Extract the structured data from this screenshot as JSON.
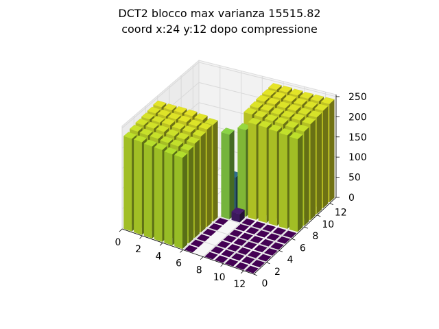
{
  "chart_data": {
    "type": "bar3d",
    "title_lines": [
      "DCT2 blocco max varianza 15515.82",
      "coord x:24 y:12 dopo compressione"
    ],
    "x_ticks": [
      "0",
      "2",
      "4",
      "6",
      "8",
      "10",
      "12"
    ],
    "y_ticks": [
      "0",
      "2",
      "4",
      "6",
      "8",
      "10",
      "12"
    ],
    "z_ticks": [
      "0",
      "50",
      "100",
      "150",
      "200",
      "250"
    ],
    "zlim": [
      0,
      255
    ],
    "grid_size": 13,
    "colormap": "viridis",
    "bars": [
      {
        "x": 0,
        "y": 0,
        "z": 230
      },
      {
        "x": 0,
        "y": 1,
        "z": 235
      },
      {
        "x": 0,
        "y": 2,
        "z": 238
      },
      {
        "x": 0,
        "y": 3,
        "z": 240
      },
      {
        "x": 0,
        "y": 4,
        "z": 242
      },
      {
        "x": 0,
        "y": 5,
        "z": 245
      },
      {
        "x": 1,
        "y": 0,
        "z": 230
      },
      {
        "x": 1,
        "y": 1,
        "z": 234
      },
      {
        "x": 1,
        "y": 2,
        "z": 238
      },
      {
        "x": 1,
        "y": 3,
        "z": 240
      },
      {
        "x": 1,
        "y": 4,
        "z": 243
      },
      {
        "x": 1,
        "y": 5,
        "z": 245
      },
      {
        "x": 2,
        "y": 0,
        "z": 228
      },
      {
        "x": 2,
        "y": 1,
        "z": 234
      },
      {
        "x": 2,
        "y": 2,
        "z": 238
      },
      {
        "x": 2,
        "y": 3,
        "z": 242
      },
      {
        "x": 2,
        "y": 4,
        "z": 243
      },
      {
        "x": 2,
        "y": 5,
        "z": 246
      },
      {
        "x": 3,
        "y": 0,
        "z": 228
      },
      {
        "x": 3,
        "y": 1,
        "z": 232
      },
      {
        "x": 3,
        "y": 2,
        "z": 236
      },
      {
        "x": 3,
        "y": 3,
        "z": 240
      },
      {
        "x": 3,
        "y": 4,
        "z": 244
      },
      {
        "x": 3,
        "y": 5,
        "z": 246
      },
      {
        "x": 4,
        "y": 0,
        "z": 226
      },
      {
        "x": 4,
        "y": 1,
        "z": 232
      },
      {
        "x": 4,
        "y": 2,
        "z": 236
      },
      {
        "x": 4,
        "y": 3,
        "z": 240
      },
      {
        "x": 4,
        "y": 4,
        "z": 242
      },
      {
        "x": 4,
        "y": 5,
        "z": 244
      },
      {
        "x": 5,
        "y": 0,
        "z": 226
      },
      {
        "x": 5,
        "y": 1,
        "z": 230
      },
      {
        "x": 5,
        "y": 2,
        "z": 234
      },
      {
        "x": 5,
        "y": 3,
        "z": 238
      },
      {
        "x": 5,
        "y": 4,
        "z": 242
      },
      {
        "x": 5,
        "y": 5,
        "z": 240
      },
      {
        "x": 6,
        "y": 0,
        "z": 0
      },
      {
        "x": 6,
        "y": 1,
        "z": 0
      },
      {
        "x": 6,
        "y": 2,
        "z": 0
      },
      {
        "x": 6,
        "y": 3,
        "z": 0
      },
      {
        "x": 6,
        "y": 4,
        "z": 0
      },
      {
        "x": 6,
        "y": 5,
        "z": 0
      },
      {
        "x": 6,
        "y": 6,
        "z": 210
      },
      {
        "x": 6,
        "y": 7,
        "z": 90
      },
      {
        "x": 7,
        "y": 6,
        "z": 20
      },
      {
        "x": 7,
        "y": 7,
        "z": 215
      },
      {
        "x": 8,
        "y": 0,
        "z": 0
      },
      {
        "x": 8,
        "y": 1,
        "z": 0
      },
      {
        "x": 8,
        "y": 2,
        "z": 0
      },
      {
        "x": 8,
        "y": 3,
        "z": 0
      },
      {
        "x": 8,
        "y": 4,
        "z": 0
      },
      {
        "x": 8,
        "y": 5,
        "z": 0
      },
      {
        "x": 8,
        "y": 6,
        "z": 0
      },
      {
        "x": 9,
        "y": 0,
        "z": 0
      },
      {
        "x": 9,
        "y": 1,
        "z": 0
      },
      {
        "x": 9,
        "y": 2,
        "z": 0
      },
      {
        "x": 9,
        "y": 3,
        "z": 0
      },
      {
        "x": 9,
        "y": 4,
        "z": 0
      },
      {
        "x": 9,
        "y": 5,
        "z": 0
      },
      {
        "x": 9,
        "y": 6,
        "z": 0
      },
      {
        "x": 10,
        "y": 0,
        "z": 0
      },
      {
        "x": 10,
        "y": 1,
        "z": 0
      },
      {
        "x": 10,
        "y": 2,
        "z": 0
      },
      {
        "x": 10,
        "y": 3,
        "z": 0
      },
      {
        "x": 10,
        "y": 4,
        "z": 0
      },
      {
        "x": 10,
        "y": 5,
        "z": 0
      },
      {
        "x": 10,
        "y": 6,
        "z": 0
      },
      {
        "x": 11,
        "y": 0,
        "z": 0
      },
      {
        "x": 11,
        "y": 1,
        "z": 0
      },
      {
        "x": 11,
        "y": 2,
        "z": 0
      },
      {
        "x": 11,
        "y": 3,
        "z": 0
      },
      {
        "x": 11,
        "y": 4,
        "z": 0
      },
      {
        "x": 11,
        "y": 5,
        "z": 0
      },
      {
        "x": 11,
        "y": 6,
        "z": 0
      },
      {
        "x": 12,
        "y": 0,
        "z": 0
      },
      {
        "x": 12,
        "y": 1,
        "z": 0
      },
      {
        "x": 12,
        "y": 2,
        "z": 0
      },
      {
        "x": 12,
        "y": 3,
        "z": 0
      },
      {
        "x": 12,
        "y": 4,
        "z": 0
      },
      {
        "x": 12,
        "y": 5,
        "z": 0
      },
      {
        "x": 12,
        "y": 6,
        "z": 0
      },
      {
        "x": 7,
        "y": 8,
        "z": 240
      },
      {
        "x": 7,
        "y": 9,
        "z": 242
      },
      {
        "x": 7,
        "y": 10,
        "z": 244
      },
      {
        "x": 7,
        "y": 11,
        "z": 245
      },
      {
        "x": 7,
        "y": 12,
        "z": 246
      },
      {
        "x": 8,
        "y": 7,
        "z": 236
      },
      {
        "x": 8,
        "y": 8,
        "z": 240
      },
      {
        "x": 8,
        "y": 9,
        "z": 242
      },
      {
        "x": 8,
        "y": 10,
        "z": 244
      },
      {
        "x": 8,
        "y": 11,
        "z": 245
      },
      {
        "x": 8,
        "y": 12,
        "z": 246
      },
      {
        "x": 9,
        "y": 7,
        "z": 236
      },
      {
        "x": 9,
        "y": 8,
        "z": 238
      },
      {
        "x": 9,
        "y": 9,
        "z": 240
      },
      {
        "x": 9,
        "y": 10,
        "z": 242
      },
      {
        "x": 9,
        "y": 11,
        "z": 244
      },
      {
        "x": 9,
        "y": 12,
        "z": 245
      },
      {
        "x": 10,
        "y": 7,
        "z": 234
      },
      {
        "x": 10,
        "y": 8,
        "z": 238
      },
      {
        "x": 10,
        "y": 9,
        "z": 240
      },
      {
        "x": 10,
        "y": 10,
        "z": 242
      },
      {
        "x": 10,
        "y": 11,
        "z": 243
      },
      {
        "x": 10,
        "y": 12,
        "z": 244
      },
      {
        "x": 11,
        "y": 7,
        "z": 232
      },
      {
        "x": 11,
        "y": 8,
        "z": 236
      },
      {
        "x": 11,
        "y": 9,
        "z": 240
      },
      {
        "x": 11,
        "y": 10,
        "z": 240
      },
      {
        "x": 11,
        "y": 11,
        "z": 242
      },
      {
        "x": 11,
        "y": 12,
        "z": 244
      },
      {
        "x": 12,
        "y": 7,
        "z": 230
      },
      {
        "x": 12,
        "y": 8,
        "z": 234
      },
      {
        "x": 12,
        "y": 9,
        "z": 238
      },
      {
        "x": 12,
        "y": 10,
        "z": 240
      },
      {
        "x": 12,
        "y": 11,
        "z": 242
      },
      {
        "x": 12,
        "y": 12,
        "z": 244
      }
    ]
  }
}
